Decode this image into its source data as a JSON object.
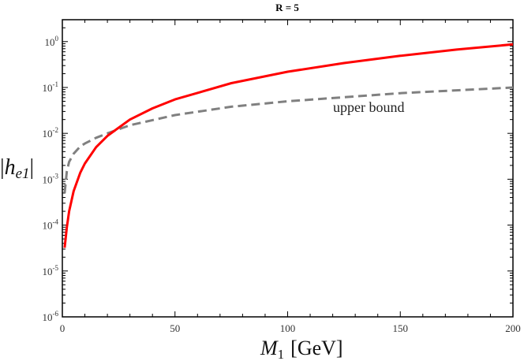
{
  "chart_data": {
    "type": "line",
    "title": "R = 5",
    "xlabel": "M_1 [GeV]",
    "xlabel_main": "M",
    "xlabel_sub": "1",
    "xlabel_unit": "[GeV]",
    "ylabel": "|h_e1|",
    "ylabel_main": "h",
    "ylabel_sub": "e1",
    "xlim": [
      0,
      200
    ],
    "ylim": [
      1e-06,
      3
    ],
    "yscale": "log",
    "xticks": [
      0,
      50,
      100,
      150,
      200
    ],
    "yticks": [
      {
        "base": "10",
        "exp": "0"
      },
      {
        "base": "10",
        "exp": "-1"
      },
      {
        "base": "10",
        "exp": "-2"
      },
      {
        "base": "10",
        "exp": "-3"
      },
      {
        "base": "10",
        "exp": "-4"
      },
      {
        "base": "10",
        "exp": "-5"
      },
      {
        "base": "10",
        "exp": "-6"
      }
    ],
    "grid": false,
    "series": [
      {
        "name": "|h_e1|",
        "color": "#ff0000",
        "style": "solid",
        "x": [
          1,
          2,
          3,
          5,
          8,
          10,
          15,
          20,
          30,
          40,
          50,
          75,
          100,
          125,
          150,
          175,
          200
        ],
        "y": [
          3.2e-05,
          9e-05,
          0.0002,
          0.00055,
          0.0014,
          0.0022,
          0.005,
          0.0088,
          0.02,
          0.035,
          0.055,
          0.124,
          0.22,
          0.34,
          0.49,
          0.67,
          0.87
        ]
      },
      {
        "name": "upper bound",
        "color": "#808080",
        "style": "dashed",
        "x": [
          1,
          2,
          3,
          5,
          8,
          10,
          15,
          20,
          30,
          50,
          75,
          100,
          150,
          200
        ],
        "y": [
          0.0005,
          0.0015,
          0.0024,
          0.0036,
          0.0052,
          0.006,
          0.008,
          0.01,
          0.015,
          0.025,
          0.038,
          0.05,
          0.075,
          0.1
        ]
      }
    ],
    "annotations": [
      {
        "text": "upper bound",
        "near_series": "upper bound"
      }
    ]
  }
}
